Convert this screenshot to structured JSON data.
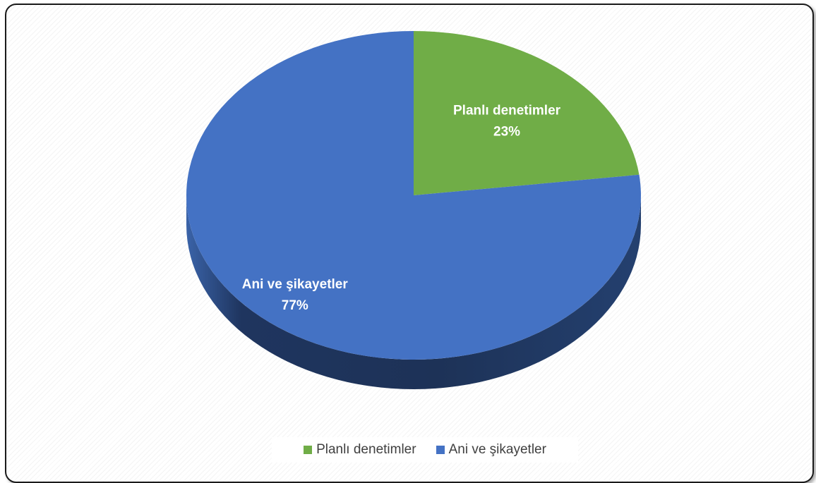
{
  "chart_data": {
    "type": "pie",
    "title": "",
    "categories": [
      "Planlı denetimler",
      "Ani ve şikayetler"
    ],
    "values": [
      23,
      77
    ],
    "value_labels": [
      "23%",
      "77%"
    ],
    "colors": [
      "#70AD47",
      "#4472C4"
    ],
    "legend_position": "bottom",
    "style": "3d"
  },
  "legend": {
    "items": [
      {
        "label": "Planlı denetimler",
        "color": "#70AD47"
      },
      {
        "label": "Ani ve şikayetler",
        "color": "#4472C4"
      }
    ]
  }
}
